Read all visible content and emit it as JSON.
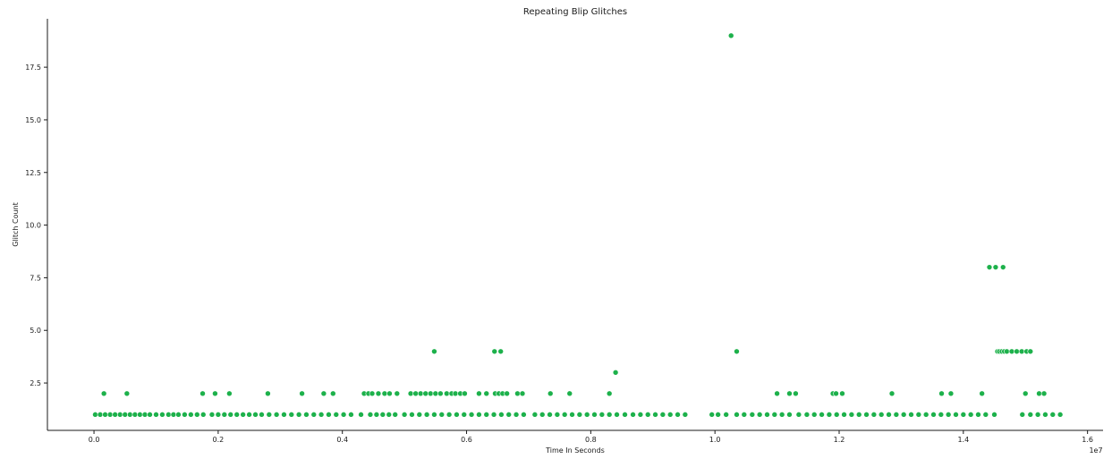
{
  "chart_data": {
    "type": "scatter",
    "title": "Repeating Blip Glitches",
    "xlabel": "Time In Seconds",
    "ylabel": "Glitch Count",
    "x_offset_label": "1e7",
    "xlim": [
      -0.075,
      1.625
    ],
    "ylim": [
      0.25,
      19.8
    ],
    "x_ticks": [
      0.0,
      0.2,
      0.4,
      0.6,
      0.8,
      1.0,
      1.2,
      1.4,
      1.6
    ],
    "x_tick_labels": [
      "0.0",
      "0.2",
      "0.4",
      "0.6",
      "0.8",
      "1.0",
      "1.2",
      "1.4",
      "1.6"
    ],
    "y_ticks": [
      2.5,
      5.0,
      7.5,
      10.0,
      12.5,
      15.0,
      17.5
    ],
    "y_tick_labels": [
      "2.5",
      "5.0",
      "7.5",
      "10.0",
      "12.5",
      "15.0",
      "17.5"
    ],
    "grid": false,
    "marker_color": "#1db14b",
    "series": [
      {
        "x": [
          0.002,
          0.01,
          0.018,
          0.026,
          0.034,
          0.042,
          0.05,
          0.058,
          0.066,
          0.074,
          0.082,
          0.09,
          0.1,
          0.11,
          0.12,
          0.128,
          0.136,
          0.146,
          0.156,
          0.166,
          0.176,
          0.19,
          0.2,
          0.21,
          0.22,
          0.23,
          0.24,
          0.25,
          0.26,
          0.27,
          0.282,
          0.294,
          0.306,
          0.318,
          0.33,
          0.342,
          0.354,
          0.366,
          0.378,
          0.39,
          0.402,
          0.414,
          0.43,
          0.445,
          0.455,
          0.465,
          0.475,
          0.485,
          0.5,
          0.512,
          0.524,
          0.536,
          0.548,
          0.56,
          0.572,
          0.584,
          0.596,
          0.608,
          0.62,
          0.632,
          0.644,
          0.656,
          0.668,
          0.68,
          0.692,
          0.71,
          0.722,
          0.734,
          0.746,
          0.758,
          0.77,
          0.782,
          0.794,
          0.806,
          0.818,
          0.83,
          0.842,
          0.855,
          0.868,
          0.88,
          0.892,
          0.904,
          0.916,
          0.928,
          0.94,
          0.952,
          0.995,
          1.005,
          1.018,
          1.035,
          1.047,
          1.06,
          1.072,
          1.084,
          1.096,
          1.108,
          1.12,
          1.135,
          1.148,
          1.16,
          1.172,
          1.184,
          1.196,
          1.208,
          1.22,
          1.232,
          1.244,
          1.256,
          1.268,
          1.28,
          1.292,
          1.304,
          1.316,
          1.328,
          1.34,
          1.352,
          1.364,
          1.376,
          1.388,
          1.4,
          1.412,
          1.424,
          1.436,
          1.45,
          1.495,
          1.508,
          1.52,
          1.532,
          1.544,
          1.556,
          0.016,
          0.053,
          0.175,
          0.195,
          0.218,
          0.28,
          0.335,
          0.37,
          0.385,
          0.435,
          0.442,
          0.448,
          0.458,
          0.468,
          0.476,
          0.488,
          0.51,
          0.518,
          0.526,
          0.534,
          0.542,
          0.55,
          0.558,
          0.568,
          0.576,
          0.582,
          0.59,
          0.597,
          0.62,
          0.632,
          0.646,
          0.652,
          0.658,
          0.665,
          0.682,
          0.69,
          0.735,
          0.766,
          0.83,
          1.1,
          1.12,
          1.13,
          1.19,
          1.195,
          1.205,
          1.285,
          1.365,
          1.38,
          1.43,
          1.5,
          1.522,
          1.53,
          0.548,
          0.645,
          0.655,
          0.84,
          1.035,
          1.455,
          1.458,
          1.462,
          1.466,
          1.47,
          1.478,
          1.486,
          1.494,
          1.502,
          1.508,
          1.442,
          1.452,
          1.464,
          1.026
        ],
        "y": [
          1,
          1,
          1,
          1,
          1,
          1,
          1,
          1,
          1,
          1,
          1,
          1,
          1,
          1,
          1,
          1,
          1,
          1,
          1,
          1,
          1,
          1,
          1,
          1,
          1,
          1,
          1,
          1,
          1,
          1,
          1,
          1,
          1,
          1,
          1,
          1,
          1,
          1,
          1,
          1,
          1,
          1,
          1,
          1,
          1,
          1,
          1,
          1,
          1,
          1,
          1,
          1,
          1,
          1,
          1,
          1,
          1,
          1,
          1,
          1,
          1,
          1,
          1,
          1,
          1,
          1,
          1,
          1,
          1,
          1,
          1,
          1,
          1,
          1,
          1,
          1,
          1,
          1,
          1,
          1,
          1,
          1,
          1,
          1,
          1,
          1,
          1,
          1,
          1,
          1,
          1,
          1,
          1,
          1,
          1,
          1,
          1,
          1,
          1,
          1,
          1,
          1,
          1,
          1,
          1,
          1,
          1,
          1,
          1,
          1,
          1,
          1,
          1,
          1,
          1,
          1,
          1,
          1,
          1,
          1,
          1,
          1,
          1,
          1,
          1,
          1,
          1,
          1,
          1,
          1,
          2,
          2,
          2,
          2,
          2,
          2,
          2,
          2,
          2,
          2,
          2,
          2,
          2,
          2,
          2,
          2,
          2,
          2,
          2,
          2,
          2,
          2,
          2,
          2,
          2,
          2,
          2,
          2,
          2,
          2,
          2,
          2,
          2,
          2,
          2,
          2,
          2,
          2,
          2,
          2,
          2,
          2,
          2,
          2,
          2,
          2,
          2,
          2,
          2,
          2,
          2,
          2,
          4,
          4,
          4,
          3,
          4,
          4,
          4,
          4,
          4,
          4,
          4,
          4,
          4,
          4,
          4,
          8,
          8,
          8,
          19
        ]
      }
    ]
  }
}
